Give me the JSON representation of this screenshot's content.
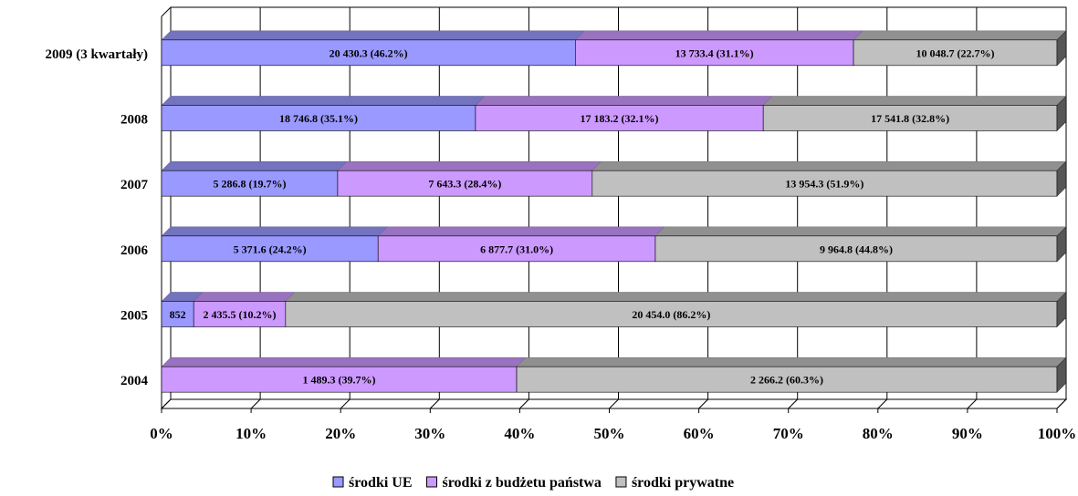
{
  "chart_data": {
    "type": "bar",
    "orientation": "horizontal",
    "stacked": "percent",
    "three_d": true,
    "categories": [
      "2009 (3 kwartały)",
      "2008",
      "2007",
      "2006",
      "2005",
      "2004"
    ],
    "series": [
      {
        "name": "środki UE",
        "color": "#9999ff",
        "values": [
          20430.3,
          18746.8,
          5286.8,
          5371.6,
          852,
          0
        ],
        "labels": [
          "20 430.3 (46.2%)",
          "18 746.8 (35.1%)",
          "5 286.8 (19.7%)",
          "5 371.6 (24.2%)",
          "852",
          ""
        ]
      },
      {
        "name": "środki z budżetu państwa",
        "color": "#cc99ff",
        "values": [
          13733.4,
          17183.2,
          7643.3,
          6877.7,
          2435.5,
          1489.3
        ],
        "labels": [
          "13 733.4 (31.1%)",
          "17 183.2 (32.1%)",
          "7 643.3 (28.4%)",
          "6 877.7 (31.0%)",
          "2 435.5 (10.2%)",
          "1 489.3 (39.7%)"
        ]
      },
      {
        "name": "środki prywatne",
        "color": "#c0c0c0",
        "values": [
          10048.7,
          17541.8,
          13954.3,
          9964.8,
          20454.0,
          2266.2
        ],
        "labels": [
          "10 048.7 (22.7%)",
          "17 541.8 (32.8%)",
          "13 954.3 (51.9%)",
          "9 964.8 (44.8%)",
          "20 454.0 (86.2%)",
          "2 266.2 (60.3%)"
        ]
      }
    ],
    "x_ticks": [
      "0%",
      "10%",
      "20%",
      "30%",
      "40%",
      "50%",
      "60%",
      "70%",
      "80%",
      "90%",
      "100%"
    ],
    "xlim": [
      0,
      100
    ],
    "grid": true,
    "legend_position": "bottom"
  }
}
